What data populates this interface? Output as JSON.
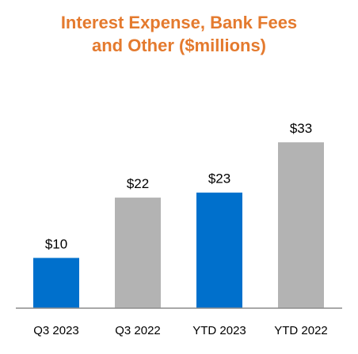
{
  "chart_data": {
    "type": "bar",
    "title_lines": [
      "Interest Expense, Bank Fees",
      "and Other ($millions)"
    ],
    "categories": [
      "Q3 2023",
      "Q3 2022",
      "YTD 2023",
      "YTD 2022"
    ],
    "values": [
      10,
      22,
      23,
      33
    ],
    "value_labels": [
      "$10",
      "$22",
      "$23",
      "$33"
    ],
    "colors": [
      "#0070cc",
      "#b3b3b3",
      "#0070cc",
      "#b3b3b3"
    ],
    "title_color": "#e47a2e",
    "ylim": [
      0,
      35
    ],
    "grid": false,
    "legend": "none"
  }
}
